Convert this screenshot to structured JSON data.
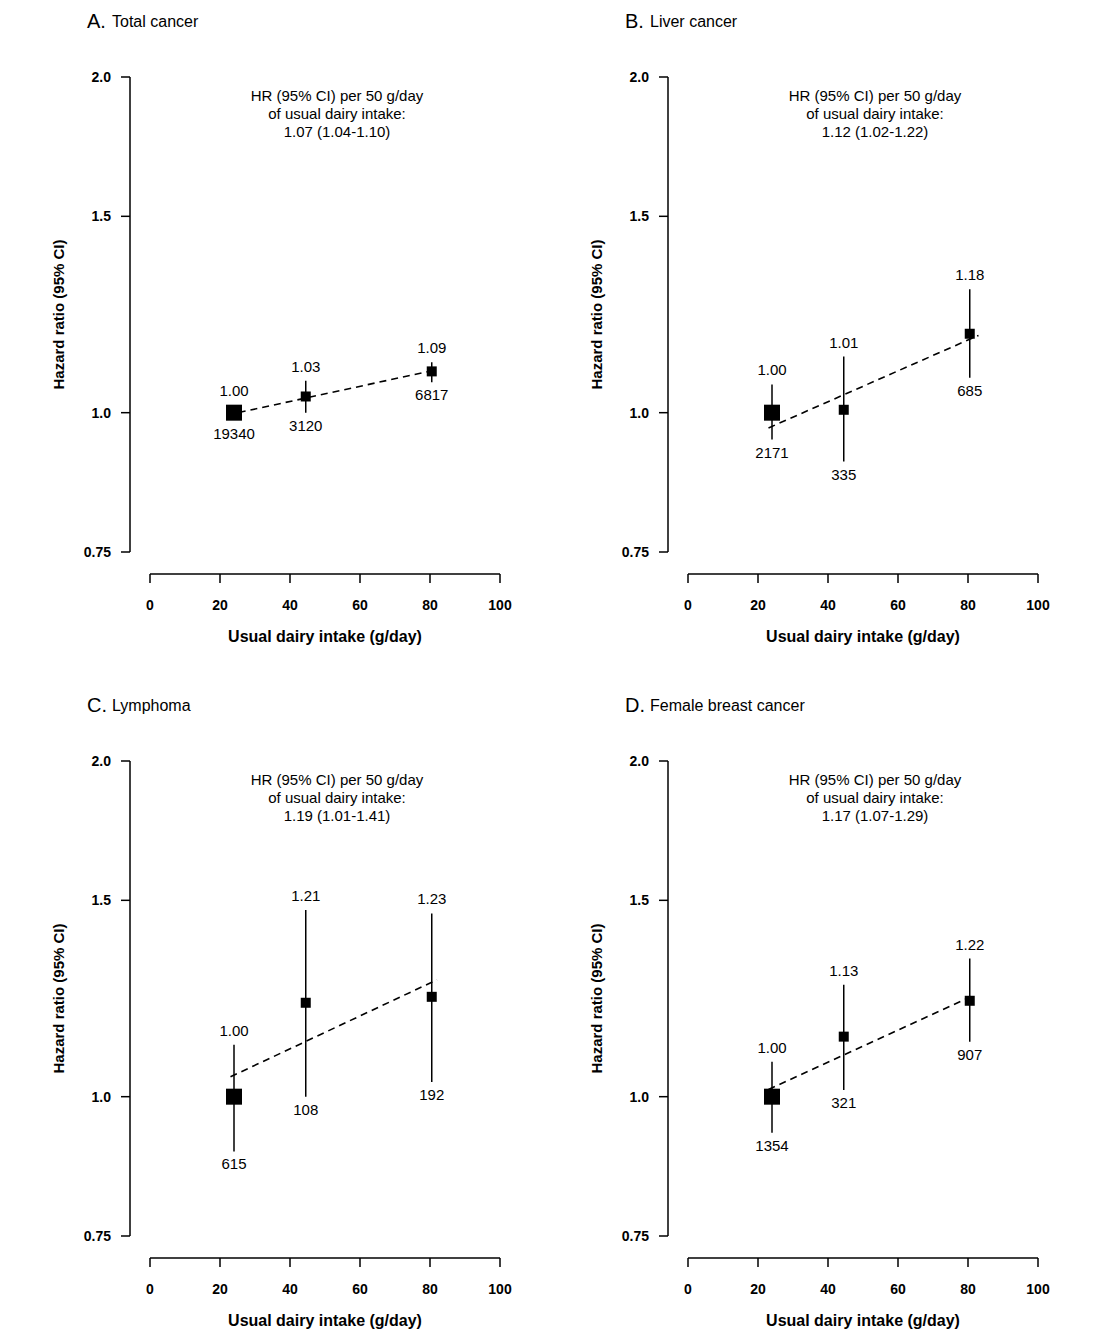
{
  "chart_data": [
    {
      "type": "scatter",
      "panel": "A.",
      "title": "Total cancer",
      "xlabel": "Usual dairy intake (g/day)",
      "ylabel": "Hazard ratio (95% CI)",
      "annotation": [
        "HR (95% CI) per 50 g/day",
        "of usual dairy intake:",
        "1.07 (1.04-1.10)"
      ],
      "x": [
        24,
        44.5,
        80.5
      ],
      "values": [
        1.0,
        1.034,
        1.089
      ],
      "value_labels": [
        "1.00",
        "1.03",
        "1.09"
      ],
      "ci_lower": [
        0.99,
        1.0,
        1.065
      ],
      "ci_upper": [
        1.01,
        1.068,
        1.11
      ],
      "cases": [
        19340,
        3120,
        6817
      ],
      "trend": {
        "x": [
          22,
          82
        ],
        "values": [
          0.995,
          1.093
        ],
        "line_style": "dashed"
      },
      "marker": "square",
      "color": "#000000",
      "log": "y",
      "xlim": [
        0,
        100
      ],
      "xticks": [
        0,
        20,
        40,
        60,
        80,
        100
      ],
      "ylim": [
        0.75,
        2.0
      ],
      "yticks": [
        0.75,
        {
          "value": 1.0,
          "label": "1.0"
        },
        {
          "value": 1.5,
          "label": "1.5"
        },
        {
          "value": 2.0,
          "label": "2.0"
        }
      ]
    },
    {
      "type": "scatter",
      "panel": "B.",
      "title": "Liver cancer",
      "xlabel": "Usual dairy intake (g/day)",
      "ylabel": "Hazard ratio (95% CI)",
      "annotation": [
        "HR (95% CI) per 50 g/day",
        "of usual dairy intake:",
        "1.12 (1.02-1.22)"
      ],
      "x": [
        24,
        44.5,
        80.5
      ],
      "values": [
        1.0,
        1.006,
        1.177
      ],
      "value_labels": [
        "1.00",
        "1.01",
        "1.18"
      ],
      "ci_lower": [
        0.946,
        0.904,
        1.075
      ],
      "ci_upper": [
        1.06,
        1.123,
        1.29
      ],
      "cases": [
        2171,
        335,
        685
      ],
      "trend": {
        "x": [
          23,
          83
        ],
        "values": [
          0.969,
          1.173
        ],
        "line_style": "dashed"
      },
      "marker": "square",
      "color": "#000000",
      "log": "y",
      "xlim": [
        0,
        100
      ],
      "xticks": [
        0,
        20,
        40,
        60,
        80,
        100
      ],
      "ylim": [
        0.75,
        2.0
      ],
      "yticks": [
        0.75,
        {
          "value": 1.0,
          "label": "1.0"
        },
        {
          "value": 1.5,
          "label": "1.5"
        },
        {
          "value": 2.0,
          "label": "2.0"
        }
      ]
    },
    {
      "type": "scatter",
      "panel": "C.",
      "title": "Lymphoma",
      "xlabel": "Usual dairy intake (g/day)",
      "ylabel": "Hazard ratio (95% CI)",
      "annotation": [
        "HR (95% CI) per 50 g/day",
        "of usual dairy intake:",
        "1.19 (1.01-1.41)"
      ],
      "x": [
        24,
        44.5,
        80.5
      ],
      "values": [
        1.0,
        1.214,
        1.229
      ],
      "value_labels": [
        "1.00",
        "1.21",
        "1.23"
      ],
      "ci_lower": [
        0.893,
        1.0,
        1.031
      ],
      "ci_upper": [
        1.113,
        1.47,
        1.46
      ],
      "cases": [
        615,
        108,
        192
      ],
      "trend": {
        "x": [
          23,
          82
        ],
        "values": [
          1.042,
          1.273
        ],
        "line_style": "dashed"
      },
      "marker": "square",
      "color": "#000000",
      "log": "y",
      "xlim": [
        0,
        100
      ],
      "xticks": [
        0,
        20,
        40,
        60,
        80,
        100
      ],
      "ylim": [
        0.75,
        2.0
      ],
      "yticks": [
        0.75,
        {
          "value": 1.0,
          "label": "1.0"
        },
        {
          "value": 1.5,
          "label": "1.5"
        },
        {
          "value": 2.0,
          "label": "2.0"
        }
      ]
    },
    {
      "type": "scatter",
      "panel": "D.",
      "title": "Female breast cancer",
      "xlabel": "Usual dairy intake (g/day)",
      "ylabel": "Hazard ratio (95% CI)",
      "annotation": [
        "HR (95% CI) per 50 g/day",
        "of usual dairy intake:",
        "1.17 (1.07-1.29)"
      ],
      "x": [
        24,
        44.5,
        80.5
      ],
      "values": [
        1.0,
        1.132,
        1.219
      ],
      "value_labels": [
        "1.00",
        "1.13",
        "1.22"
      ],
      "ci_lower": [
        0.928,
        1.014,
        1.12
      ],
      "ci_upper": [
        1.075,
        1.26,
        1.33
      ],
      "cases": [
        1354,
        321,
        907
      ],
      "trend": {
        "x": [
          23,
          82
        ],
        "values": [
          1.015,
          1.234
        ],
        "line_style": "dashed"
      },
      "marker": "square",
      "color": "#000000",
      "log": "y",
      "xlim": [
        0,
        100
      ],
      "xticks": [
        0,
        20,
        40,
        60,
        80,
        100
      ],
      "ylim": [
        0.75,
        2.0
      ],
      "yticks": [
        0.75,
        {
          "value": 1.0,
          "label": "1.0"
        },
        {
          "value": 1.5,
          "label": "1.5"
        },
        {
          "value": 2.0,
          "label": "2.0"
        }
      ]
    }
  ]
}
